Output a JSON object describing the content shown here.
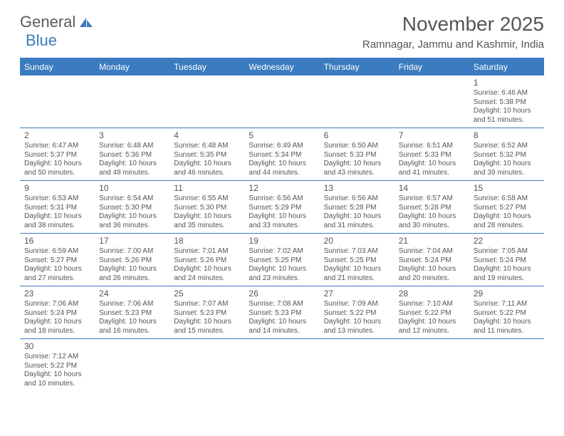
{
  "logo": {
    "general": "General",
    "blue": "Blue"
  },
  "title": "November 2025",
  "location": "Ramnagar, Jammu and Kashmir, India",
  "colors": {
    "header_bar": "#3b7bbf",
    "text": "#555555",
    "background": "#ffffff"
  },
  "weekdays": [
    "Sunday",
    "Monday",
    "Tuesday",
    "Wednesday",
    "Thursday",
    "Friday",
    "Saturday"
  ],
  "weeks": [
    [
      null,
      null,
      null,
      null,
      null,
      null,
      {
        "n": "1",
        "sunrise": "6:46 AM",
        "sunset": "5:38 PM",
        "dl": "10 hours and 51 minutes."
      }
    ],
    [
      {
        "n": "2",
        "sunrise": "6:47 AM",
        "sunset": "5:37 PM",
        "dl": "10 hours and 50 minutes."
      },
      {
        "n": "3",
        "sunrise": "6:48 AM",
        "sunset": "5:36 PM",
        "dl": "10 hours and 48 minutes."
      },
      {
        "n": "4",
        "sunrise": "6:48 AM",
        "sunset": "5:35 PM",
        "dl": "10 hours and 46 minutes."
      },
      {
        "n": "5",
        "sunrise": "6:49 AM",
        "sunset": "5:34 PM",
        "dl": "10 hours and 44 minutes."
      },
      {
        "n": "6",
        "sunrise": "6:50 AM",
        "sunset": "5:33 PM",
        "dl": "10 hours and 43 minutes."
      },
      {
        "n": "7",
        "sunrise": "6:51 AM",
        "sunset": "5:33 PM",
        "dl": "10 hours and 41 minutes."
      },
      {
        "n": "8",
        "sunrise": "6:52 AM",
        "sunset": "5:32 PM",
        "dl": "10 hours and 39 minutes."
      }
    ],
    [
      {
        "n": "9",
        "sunrise": "6:53 AM",
        "sunset": "5:31 PM",
        "dl": "10 hours and 38 minutes."
      },
      {
        "n": "10",
        "sunrise": "6:54 AM",
        "sunset": "5:30 PM",
        "dl": "10 hours and 36 minutes."
      },
      {
        "n": "11",
        "sunrise": "6:55 AM",
        "sunset": "5:30 PM",
        "dl": "10 hours and 35 minutes."
      },
      {
        "n": "12",
        "sunrise": "6:56 AM",
        "sunset": "5:29 PM",
        "dl": "10 hours and 33 minutes."
      },
      {
        "n": "13",
        "sunrise": "6:56 AM",
        "sunset": "5:28 PM",
        "dl": "10 hours and 31 minutes."
      },
      {
        "n": "14",
        "sunrise": "6:57 AM",
        "sunset": "5:28 PM",
        "dl": "10 hours and 30 minutes."
      },
      {
        "n": "15",
        "sunrise": "6:58 AM",
        "sunset": "5:27 PM",
        "dl": "10 hours and 28 minutes."
      }
    ],
    [
      {
        "n": "16",
        "sunrise": "6:59 AM",
        "sunset": "5:27 PM",
        "dl": "10 hours and 27 minutes."
      },
      {
        "n": "17",
        "sunrise": "7:00 AM",
        "sunset": "5:26 PM",
        "dl": "10 hours and 26 minutes."
      },
      {
        "n": "18",
        "sunrise": "7:01 AM",
        "sunset": "5:26 PM",
        "dl": "10 hours and 24 minutes."
      },
      {
        "n": "19",
        "sunrise": "7:02 AM",
        "sunset": "5:25 PM",
        "dl": "10 hours and 23 minutes."
      },
      {
        "n": "20",
        "sunrise": "7:03 AM",
        "sunset": "5:25 PM",
        "dl": "10 hours and 21 minutes."
      },
      {
        "n": "21",
        "sunrise": "7:04 AM",
        "sunset": "5:24 PM",
        "dl": "10 hours and 20 minutes."
      },
      {
        "n": "22",
        "sunrise": "7:05 AM",
        "sunset": "5:24 PM",
        "dl": "10 hours and 19 minutes."
      }
    ],
    [
      {
        "n": "23",
        "sunrise": "7:06 AM",
        "sunset": "5:24 PM",
        "dl": "10 hours and 18 minutes."
      },
      {
        "n": "24",
        "sunrise": "7:06 AM",
        "sunset": "5:23 PM",
        "dl": "10 hours and 16 minutes."
      },
      {
        "n": "25",
        "sunrise": "7:07 AM",
        "sunset": "5:23 PM",
        "dl": "10 hours and 15 minutes."
      },
      {
        "n": "26",
        "sunrise": "7:08 AM",
        "sunset": "5:23 PM",
        "dl": "10 hours and 14 minutes."
      },
      {
        "n": "27",
        "sunrise": "7:09 AM",
        "sunset": "5:22 PM",
        "dl": "10 hours and 13 minutes."
      },
      {
        "n": "28",
        "sunrise": "7:10 AM",
        "sunset": "5:22 PM",
        "dl": "10 hours and 12 minutes."
      },
      {
        "n": "29",
        "sunrise": "7:11 AM",
        "sunset": "5:22 PM",
        "dl": "10 hours and 11 minutes."
      }
    ],
    [
      {
        "n": "30",
        "sunrise": "7:12 AM",
        "sunset": "5:22 PM",
        "dl": "10 hours and 10 minutes."
      },
      null,
      null,
      null,
      null,
      null,
      null
    ]
  ],
  "labels": {
    "sunrise": "Sunrise:",
    "sunset": "Sunset:",
    "daylight": "Daylight:"
  }
}
